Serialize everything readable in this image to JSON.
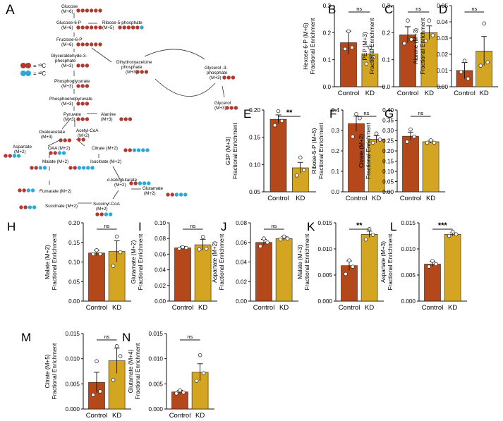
{
  "colors": {
    "control": "#B5481A",
    "kd": "#D4A520",
    "c13": "#B03A2E",
    "c12": "#2EA8D8",
    "axis": "#111111"
  },
  "pathway": {
    "panel_letter": "A",
    "legend": {
      "c13": "= ¹³C",
      "c12": "= ¹²C"
    },
    "nodes": {
      "glucose": "Glucose",
      "glucose_m6": "(M+6)",
      "g6p": "Glucose-6-P",
      "g6p_m6": "(M+6)",
      "r5p": "Ribose-5-phosphate",
      "r5p_m5": "(M+5)",
      "f6p": "Fructose-6-P",
      "f6p_m6": "(M+6)",
      "gap1": "Glyceraldehyde-3-",
      "gap2": "phosphate",
      "gap_m3": "(M+3)",
      "dhap1": "Dihydroxyacetone",
      "dhap2": "phosphate",
      "dhap_m3": "(M+3)",
      "g3p1": "Glycerol -3-",
      "g3p2": "phosphate",
      "g3p_m3": "(M+3)",
      "glycerol": "Glycerol",
      "glycerol_m3": "(M+3)",
      "bpg": "Phosphoglycerate",
      "bpg_m3": "(M+3)",
      "pep": "Phosphoenolpyruvate",
      "pep_m3": "(M+3)",
      "pyruvate": "Pyruvate",
      "pyruvate_m3": "(M+3)",
      "alanine": "Alanine",
      "alanine_m3": "(M+3)",
      "acetylcoa": "Acetyl-CoA",
      "acetylcoa_m2": "(M+2)",
      "oaa": "Oxaloacetate",
      "oaa_m3": "(M+3)",
      "oaa_m2": "OAA (M+2)",
      "citrate": "Citrate (M+2)",
      "aspartate": "Aspartate",
      "aspartate_m2": "(M+2)",
      "malate": "Malate (M+2)",
      "isocitrate": "Isocitrate (M+2)",
      "akg": "α-ketoglutarate",
      "akg_m2": "(M+2)",
      "glutamate": "Glutamate",
      "glutamate_m2": "(M+2)",
      "fumarate": "Fumarate (M+2)",
      "succinate": "Succinate (M+2)",
      "succinylcoa": "Succinyl-CoA",
      "succinylcoa_m2": "(M+2)"
    }
  },
  "chart_data": [
    {
      "panel": "B",
      "type": "bar",
      "ylabel": "Hexose 6-P (M+6)",
      "ylabel2": "Fractional Enrichment",
      "categories": [
        "Control",
        "KD"
      ],
      "values": [
        0.163,
        0.121
      ],
      "sem": [
        0.043,
        0.027
      ],
      "points": [
        [
          0.205,
          0.145,
          0.14
        ],
        [
          0.145,
          0.11,
          0.085
        ]
      ],
      "ylim": [
        0,
        0.3
      ],
      "yticks": [
        0.0,
        0.1,
        0.2,
        0.3
      ],
      "ytick_labels": [
        "0.0",
        "0.1",
        "0.2",
        "0.3"
      ],
      "sig": "ns"
    },
    {
      "panel": "C",
      "type": "bar",
      "ylabel": "PEP (M+3)",
      "ylabel2": "Fractional Enrichment",
      "categories": [
        "Control",
        "KD"
      ],
      "values": [
        0.192,
        0.2
      ],
      "sem": [
        0.03,
        0.025
      ],
      "points": [
        [
          0.245,
          0.175,
          0.16
        ],
        [
          0.245,
          0.19,
          0.17
        ]
      ],
      "ylim": [
        0,
        0.3
      ],
      "yticks": [
        0.0,
        0.1,
        0.2,
        0.3
      ],
      "ytick_labels": [
        "0.0",
        "0.1",
        "0.2",
        "0.3"
      ],
      "sig": "ns"
    },
    {
      "panel": "D",
      "type": "bar",
      "ylabel": "Alanine (M+3)",
      "ylabel2": "Fractional Enrichment",
      "categories": [
        "Control",
        "KD"
      ],
      "values": [
        0.01,
        0.022
      ],
      "sem": [
        0.005,
        0.009
      ],
      "points": [
        [
          0.016,
          0.005,
          0.009
        ],
        [
          0.039,
          0.015,
          0.013
        ]
      ],
      "ylim": [
        0,
        0.05
      ],
      "yticks": [
        0.0,
        0.01,
        0.02,
        0.03,
        0.04,
        0.05
      ],
      "ytick_labels": [
        "0.00",
        "0.01",
        "0.02",
        "0.03",
        "0.04",
        "0.05"
      ],
      "sig": "ns"
    },
    {
      "panel": "E",
      "type": "bar",
      "ylabel": "G3P (M+3)",
      "ylabel2": "Fractional Enrichment",
      "categories": [
        "Control",
        "KD"
      ],
      "values": [
        0.183,
        0.094
      ],
      "sem": [
        0.008,
        0.01
      ],
      "points": [
        [
          0.198,
          0.18,
          0.172
        ],
        [
          0.113,
          0.09,
          0.08
        ]
      ],
      "ylim": [
        0.05,
        0.2
      ],
      "yticks": [
        0.05,
        0.1,
        0.15,
        0.2
      ],
      "ytick_labels": [
        "0.05",
        "0.10",
        "0.15",
        "0.20"
      ],
      "sig": "**"
    },
    {
      "panel": "F",
      "type": "bar",
      "ylabel": "Ribose-5-P (M+5)",
      "ylabel2": "Fractional Enrichment",
      "categories": [
        "Control",
        "KD"
      ],
      "values": [
        0.333,
        0.257
      ],
      "sem": [
        0.037,
        0.018
      ],
      "points": [
        [
          0.38,
          0.36,
          0.27
        ],
        [
          0.285,
          0.255,
          0.24
        ]
      ],
      "ylim": [
        0,
        0.4
      ],
      "yticks": [
        0.0,
        0.1,
        0.2,
        0.3,
        0.4
      ],
      "ytick_labels": [
        "0.0",
        "0.1",
        "0.2",
        "0.3",
        "0.4"
      ],
      "sig": "ns"
    },
    {
      "panel": "G",
      "type": "bar",
      "ylabel": "Citrate (M+2)",
      "ylabel2": "Fractional Enrichment",
      "categories": [
        "Control",
        "KD"
      ],
      "values": [
        0.272,
        0.245
      ],
      "sem": [
        0.02,
        0.007
      ],
      "points": [
        [
          0.305,
          0.27,
          0.245
        ],
        [
          0.252,
          0.24,
          0.24
        ]
      ],
      "ylim": [
        0,
        0.4
      ],
      "yticks": [
        0.0,
        0.05,
        0.1,
        0.15,
        0.2,
        0.25,
        0.3,
        0.35,
        0.4
      ],
      "ytick_labels": [
        "0.00",
        "0.05",
        "0.10",
        "0.15",
        "0.20",
        "0.25",
        "0.30",
        "0.35",
        "0.40"
      ],
      "sig": "ns"
    },
    {
      "panel": "H",
      "type": "bar",
      "ylabel": "Malate (M+2)",
      "ylabel2": "Fractional Enrichment",
      "categories": [
        "Control",
        "KD"
      ],
      "values": [
        0.123,
        0.127
      ],
      "sem": [
        0.007,
        0.027
      ],
      "points": [
        [
          0.13,
          0.12,
          0.12
        ],
        [
          0.165,
          0.125,
          0.09
        ]
      ],
      "ylim": [
        0,
        0.2
      ],
      "yticks": [
        0.0,
        0.05,
        0.1,
        0.15,
        0.2
      ],
      "ytick_labels": [
        "0.00",
        "0.05",
        "0.10",
        "0.15",
        "0.20"
      ],
      "sig": "ns"
    },
    {
      "panel": "I",
      "type": "bar",
      "ylabel": "Glutamate (M+2)",
      "ylabel2": "Fractional Enrichment",
      "categories": [
        "Control",
        "KD"
      ],
      "values": [
        0.068,
        0.072
      ],
      "sem": [
        0.002,
        0.007
      ],
      "points": [
        [
          0.069,
          0.068,
          0.067
        ],
        [
          0.082,
          0.067,
          0.066
        ]
      ],
      "ylim": [
        0,
        0.1
      ],
      "yticks": [
        0.0,
        0.02,
        0.04,
        0.06,
        0.08,
        0.1
      ],
      "ytick_labels": [
        "0.00",
        "0.02",
        "0.04",
        "0.06",
        "0.08",
        "0.10"
      ],
      "sig": "ns"
    },
    {
      "panel": "J",
      "type": "bar",
      "ylabel": "Aspartate (M+2)",
      "ylabel2": "Fractional Enrichment",
      "categories": [
        "Control",
        "KD"
      ],
      "values": [
        0.06,
        0.064
      ],
      "sem": [
        0.003,
        0.002
      ],
      "points": [
        [
          0.064,
          0.06,
          0.056
        ],
        [
          0.066,
          0.064,
          0.063
        ]
      ],
      "ylim": [
        0,
        0.08
      ],
      "yticks": [
        0.0,
        0.02,
        0.04,
        0.06,
        0.08
      ],
      "ytick_labels": [
        "0.00",
        "0.02",
        "0.04",
        "0.06",
        "0.08"
      ],
      "sig": "ns"
    },
    {
      "panel": "K",
      "type": "bar",
      "ylabel": "Malate (M+3)",
      "ylabel2": "Fractional Enrichment",
      "categories": [
        "Control",
        "KD"
      ],
      "values": [
        0.0068,
        0.0128
      ],
      "sem": [
        0.0009,
        0.0006
      ],
      "points": [
        [
          0.0078,
          0.0066,
          0.0052
        ],
        [
          0.0138,
          0.0127,
          0.0118
        ]
      ],
      "ylim": [
        0,
        0.015
      ],
      "yticks": [
        0.0,
        0.005,
        0.01,
        0.015
      ],
      "ytick_labels": [
        "0.000",
        "0.005",
        "0.010",
        "0.015"
      ],
      "sig": "**"
    },
    {
      "panel": "L",
      "type": "bar",
      "ylabel": "Aspartate (M+3)",
      "ylabel2": "Fractional Enrichment",
      "categories": [
        "Control",
        "KD"
      ],
      "values": [
        0.0071,
        0.0128
      ],
      "sem": [
        0.0005,
        0.0003
      ],
      "points": [
        [
          0.0077,
          0.0071,
          0.0066
        ],
        [
          0.0133,
          0.0128,
          0.0125
        ]
      ],
      "ylim": [
        0,
        0.015
      ],
      "yticks": [
        0.0,
        0.005,
        0.01,
        0.015
      ],
      "ytick_labels": [
        "0.000",
        "0.005",
        "0.010",
        "0.015"
      ],
      "sig": "***"
    },
    {
      "panel": "M",
      "type": "bar",
      "ylabel": "Citrate (M+5)",
      "ylabel2": "Fractional Enrichment",
      "categories": [
        "Control",
        "KD"
      ],
      "values": [
        0.0053,
        0.0096
      ],
      "sem": [
        0.002,
        0.0025
      ],
      "points": [
        [
          0.0095,
          0.0035,
          0.0028
        ],
        [
          0.0125,
          0.0105,
          0.0058
        ]
      ],
      "ylim": [
        0,
        0.015
      ],
      "yticks": [
        0.0,
        0.005,
        0.01,
        0.015
      ],
      "ytick_labels": [
        "0.000",
        "0.005",
        "0.010",
        "0.015"
      ],
      "sig": "ns"
    },
    {
      "panel": "N",
      "type": "bar",
      "ylabel": "Glutamate (M+4)",
      "ylabel2": "Fractional Enrichment",
      "categories": [
        "Control",
        "KD"
      ],
      "values": [
        0.0034,
        0.0073
      ],
      "sem": [
        0.0003,
        0.0017
      ],
      "points": [
        [
          0.0037,
          0.0033,
          0.0031
        ],
        [
          0.0107,
          0.0071,
          0.0056
        ]
      ],
      "ylim": [
        0,
        0.015
      ],
      "yticks": [
        0.0,
        0.005,
        0.01,
        0.015
      ],
      "ytick_labels": [
        "0.000",
        "0.005",
        "0.010",
        "0.015"
      ],
      "sig": "ns"
    }
  ]
}
